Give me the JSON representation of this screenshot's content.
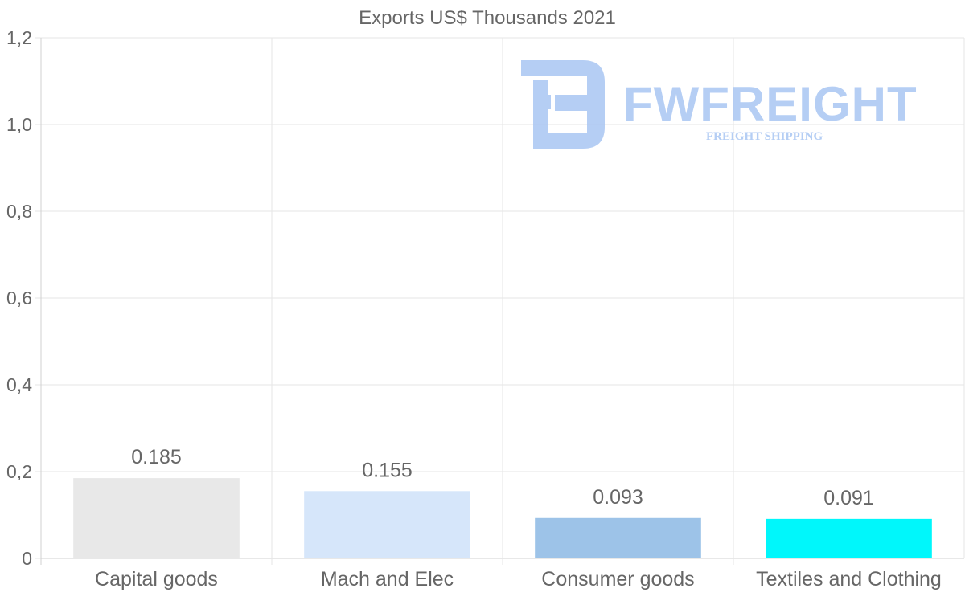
{
  "chart_data": {
    "type": "bar",
    "title": "Exports US$ Thousands 2021",
    "categories": [
      "Capital goods",
      "Mach and Elec",
      "Consumer goods",
      "Textiles and Clothing"
    ],
    "values": [
      0.185,
      0.155,
      0.093,
      0.091
    ],
    "value_labels": [
      "0.185",
      "0.155",
      "0.093",
      "0.091"
    ],
    "colors": [
      "#e8e8e8",
      "#d6e6fa",
      "#9dc3e8",
      "#00f7fb"
    ],
    "ylim": [
      0,
      1.2
    ],
    "yticks": [
      0,
      0.2,
      0.4,
      0.6,
      0.8,
      1.0,
      1.2
    ],
    "ytick_labels": [
      "0",
      "0,2",
      "0,4",
      "0,6",
      "0,8",
      "1,0",
      "1,2"
    ],
    "grid": true,
    "xlabel": "",
    "ylabel": ""
  },
  "watermark": {
    "brand": "FWFREIGHT",
    "tagline": "FREIGHT SHIPPING",
    "color": "#a9c6f3"
  }
}
